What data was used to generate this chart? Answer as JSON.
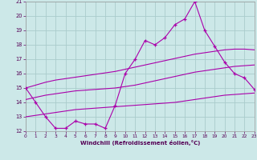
{
  "xlabel": "Windchill (Refroidissement éolien,°C)",
  "bg_color": "#cce8e8",
  "grid_color": "#aacccc",
  "line_color": "#aa00aa",
  "x": [
    0,
    1,
    2,
    3,
    4,
    5,
    6,
    7,
    8,
    9,
    10,
    11,
    12,
    13,
    14,
    15,
    16,
    17,
    18,
    19,
    20,
    21,
    22,
    23
  ],
  "y_main": [
    15.0,
    14.0,
    13.0,
    12.2,
    12.2,
    12.7,
    12.5,
    12.5,
    12.2,
    13.8,
    16.0,
    17.0,
    18.3,
    18.0,
    18.5,
    19.4,
    19.8,
    21.0,
    19.0,
    17.9,
    16.8,
    16.0,
    15.7,
    14.9
  ],
  "y_low": [
    13.0,
    13.1,
    13.2,
    13.3,
    13.4,
    13.5,
    13.55,
    13.6,
    13.65,
    13.7,
    13.75,
    13.8,
    13.85,
    13.9,
    13.95,
    14.0,
    14.1,
    14.2,
    14.3,
    14.4,
    14.5,
    14.55,
    14.6,
    14.65
  ],
  "y_mid": [
    14.2,
    14.35,
    14.5,
    14.6,
    14.7,
    14.8,
    14.85,
    14.9,
    14.95,
    15.0,
    15.1,
    15.2,
    15.35,
    15.5,
    15.65,
    15.8,
    15.95,
    16.1,
    16.2,
    16.3,
    16.4,
    16.5,
    16.55,
    16.6
  ],
  "y_high": [
    15.0,
    15.2,
    15.4,
    15.55,
    15.65,
    15.75,
    15.85,
    15.95,
    16.05,
    16.15,
    16.3,
    16.45,
    16.6,
    16.75,
    16.9,
    17.05,
    17.2,
    17.35,
    17.45,
    17.55,
    17.65,
    17.7,
    17.7,
    17.65
  ],
  "xlim": [
    0,
    23
  ],
  "ylim": [
    12,
    21
  ],
  "yticks": [
    12,
    13,
    14,
    15,
    16,
    17,
    18,
    19,
    20,
    21
  ],
  "xticks": [
    0,
    1,
    2,
    3,
    4,
    5,
    6,
    7,
    8,
    9,
    10,
    11,
    12,
    13,
    14,
    15,
    16,
    17,
    18,
    19,
    20,
    21,
    22,
    23
  ]
}
